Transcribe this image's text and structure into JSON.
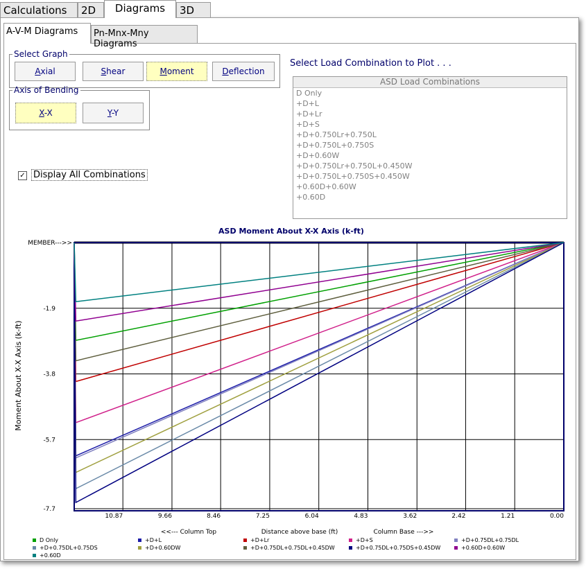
{
  "tabs": [
    "Calculations",
    "2D",
    "Diagrams",
    "3D"
  ],
  "subtabs": [
    "A-V-M Diagrams",
    "Pn-Mnx-Mny Diagrams"
  ],
  "select_graph": {
    "title": "Select Graph",
    "buttons": [
      "Axial",
      "Shear",
      "Moment",
      "Deflection"
    ]
  },
  "axis_of_bending": {
    "title": "Axis of Bending",
    "buttons": [
      "X-X",
      "Y-Y"
    ]
  },
  "checkbox": "Display All Combinations",
  "combo_prompt": "Select Load Combination to Plot . . .",
  "combo_list": {
    "header": "ASD Load Combinations",
    "items": [
      "D Only",
      "+D+L",
      "+D+Lr",
      "+D+S",
      "+D+0.750Lr+0.750L",
      "+D+0.750L+0.750S",
      "+D+0.60W",
      "+D+0.750Lr+0.750L+0.450W",
      "+D+0.750L+0.750S+0.450W",
      "+0.60D+0.60W",
      "+0.60D"
    ]
  },
  "chart_data": {
    "type": "line",
    "title": "ASD Moment About X-X Axis  (k-ft)",
    "y_label": "Moment About X-X Axis   (k-ft)",
    "x_labels": [
      "<<--- Column Top",
      "Distance above base  (ft)",
      "Column Base --->>"
    ],
    "x": [
      12.07,
      12.03,
      0.0
    ],
    "xlim": [
      12.07,
      0.0
    ],
    "xticks": [
      {
        "value": 10.87,
        "label": "10.87"
      },
      {
        "value": 9.66,
        "label": "9.66"
      },
      {
        "value": 8.46,
        "label": "8.46"
      },
      {
        "value": 7.25,
        "label": "7.25"
      },
      {
        "value": 6.04,
        "label": "6.04"
      },
      {
        "value": 4.83,
        "label": "4.83"
      },
      {
        "value": 3.62,
        "label": "3.62"
      },
      {
        "value": 2.42,
        "label": "2.42"
      },
      {
        "value": 1.21,
        "label": "1.21"
      },
      {
        "value": 0,
        "label": "0.00"
      }
    ],
    "ylim": [
      0,
      -7.76
    ],
    "yticks": [
      {
        "value": 0,
        "label": "MEMBER--->>"
      },
      -1.9,
      -3.8,
      -5.7,
      -7.7
    ],
    "grid": true,
    "series": [
      {
        "name": "D Only",
        "color": "#00a000",
        "values": [
          0,
          -2.83,
          0
        ]
      },
      {
        "name": "+D+L",
        "color": "#1c1ca8",
        "values": [
          0,
          -6.17,
          0
        ]
      },
      {
        "name": "+D+Lr",
        "color": "#c00000",
        "values": [
          0,
          -4.02,
          0
        ]
      },
      {
        "name": "+D+S",
        "color": "#d0208a",
        "values": [
          0,
          -5.21,
          0
        ]
      },
      {
        "name": "+D+0.75DL+0.75DL",
        "color": "#8080c0",
        "values": [
          0,
          -6.23,
          0
        ]
      },
      {
        "name": "+D+0.75DL+0.75DS",
        "color": "#6a8aa8",
        "values": [
          0,
          -7.12,
          0
        ]
      },
      {
        "name": "+D+0.60DW",
        "color": "#a0a040",
        "values": [
          0,
          -6.65,
          0
        ]
      },
      {
        "name": "+D+0.75DL+0.75DL+0.45DW",
        "color": "#5f5f3f",
        "values": [
          0,
          -3.42,
          0
        ]
      },
      {
        "name": "+D+0.75DL+0.75DS+0.45DW",
        "color": "#000080",
        "values": [
          0,
          -7.52,
          0
        ]
      },
      {
        "name": "+0.60D+0.60W",
        "color": "#900090",
        "values": [
          0,
          -2.27,
          0
        ]
      },
      {
        "name": "+0.60D",
        "color": "#008080",
        "values": [
          0,
          -1.71,
          0
        ]
      }
    ]
  }
}
